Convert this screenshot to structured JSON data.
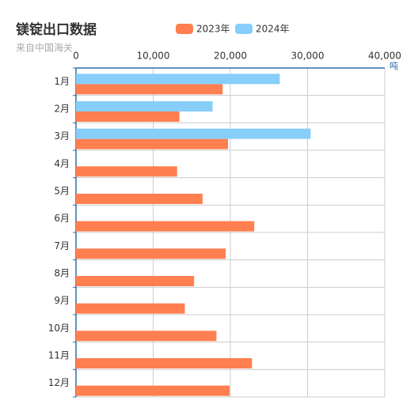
{
  "chart_data": {
    "type": "hbar",
    "title": "镁锭出口数据",
    "subtitle": "来自中国海关",
    "x_axis_label": "吨",
    "categories": [
      "1月",
      "2月",
      "3月",
      "4月",
      "5月",
      "6月",
      "7月",
      "8月",
      "9月",
      "10月",
      "11月",
      "12月"
    ],
    "series": [
      {
        "name": "2023年",
        "color": "#ff7f50",
        "values": [
          19000,
          13400,
          19700,
          13100,
          16400,
          23100,
          19400,
          15300,
          14100,
          18200,
          22800,
          19900
        ]
      },
      {
        "name": "2024年",
        "color": "#87cefa",
        "values": [
          26400,
          17700,
          30400,
          null,
          null,
          null,
          null,
          null,
          null,
          null,
          null,
          null
        ]
      }
    ],
    "xlim": [
      0,
      40000
    ],
    "xticks": [
      0,
      {
        "value": 10000,
        "label": "10,000"
      },
      {
        "value": 20000,
        "label": "20,000"
      },
      {
        "value": 30000,
        "label": "30,000"
      },
      {
        "value": 40000,
        "label": "40,000"
      }
    ],
    "grid": true
  }
}
